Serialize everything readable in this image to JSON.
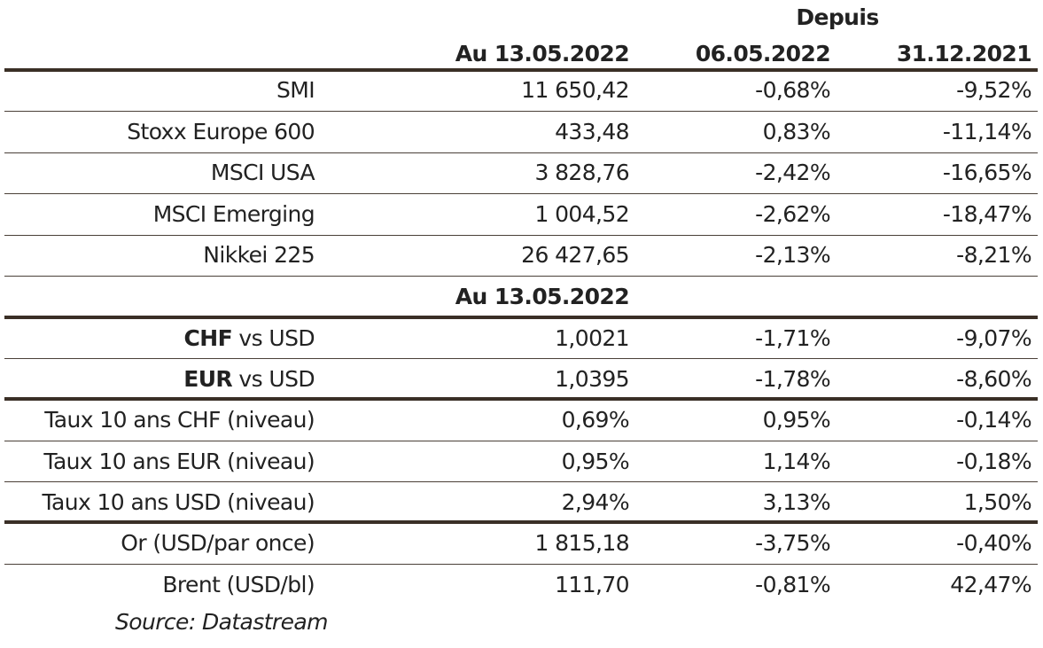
{
  "header": {
    "depuis": "Depuis",
    "col_current": "Au 13.05.2022",
    "col_week": "06.05.2022",
    "col_ytd": "31.12.2021"
  },
  "indices": [
    {
      "name": "SMI",
      "value": "11 650,42",
      "week": "-0,68%",
      "ytd": "-9,52%"
    },
    {
      "name": "Stoxx Europe 600",
      "value": "433,48",
      "week": "0,83%",
      "ytd": "-11,14%"
    },
    {
      "name": "MSCI USA",
      "value": "3 828,76",
      "week": "-2,42%",
      "ytd": "-16,65%"
    },
    {
      "name": "MSCI Emerging",
      "value": "1 004,52",
      "week": "-2,62%",
      "ytd": "-18,47%"
    },
    {
      "name": "Nikkei 225",
      "value": "26 427,65",
      "week": "-2,13%",
      "ytd": "-8,21%"
    }
  ],
  "subheader": "Au 13.05.2022",
  "currencies": [
    {
      "code": "CHF",
      "suffix": " vs USD",
      "value": "1,0021",
      "week": "-1,71%",
      "ytd": "-9,07%"
    },
    {
      "code": "EUR",
      "suffix": " vs USD",
      "value": "1,0395",
      "week": "-1,78%",
      "ytd": "-8,60%"
    }
  ],
  "rates": [
    {
      "name": "Taux 10 ans CHF (niveau)",
      "value": "0,69%",
      "week": "0,95%",
      "ytd": "-0,14%"
    },
    {
      "name": "Taux 10 ans EUR (niveau)",
      "value": "0,95%",
      "week": "1,14%",
      "ytd": "-0,18%"
    },
    {
      "name": "Taux 10 ans USD (niveau)",
      "value": "2,94%",
      "week": "3,13%",
      "ytd": "1,50%"
    }
  ],
  "commodities": [
    {
      "name": "Or (USD/par once)",
      "value": "1 815,18",
      "week": "-3,75%",
      "ytd": "-0,40%"
    },
    {
      "name": "Brent (USD/bl)",
      "value": "111,70",
      "week": "-0,81%",
      "ytd": "42,47%"
    }
  ],
  "source": "Source: Datastream"
}
